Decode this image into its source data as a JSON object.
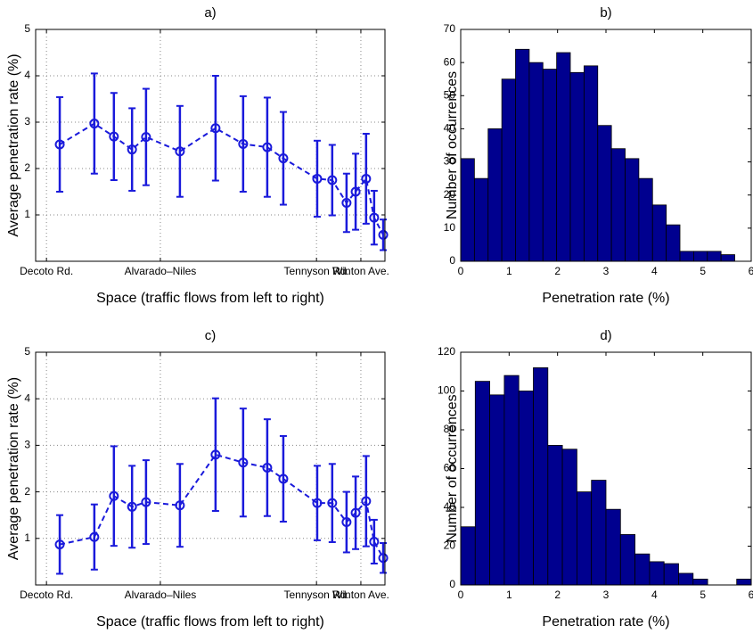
{
  "chart_data": [
    {
      "type": "errorbar",
      "title": "a)",
      "xlabel": "Space (traffic flows from left to right)",
      "ylabel": "Average penetration rate (%)",
      "x": [
        6.9,
        16.8,
        22.4,
        27.6,
        31.6,
        41.3,
        51.5,
        59.4,
        66.3,
        70.9,
        80.6,
        84.9,
        89.0,
        91.6,
        94.6,
        96.9,
        99.5
      ],
      "values": [
        2.52,
        2.97,
        2.69,
        2.41,
        2.68,
        2.37,
        2.87,
        2.53,
        2.46,
        2.22,
        1.78,
        1.75,
        1.26,
        1.5,
        1.78,
        0.94,
        0.57
      ],
      "errors": [
        1.02,
        1.08,
        0.94,
        0.89,
        1.04,
        0.98,
        1.13,
        1.03,
        1.07,
        1.0,
        0.82,
        0.76,
        0.63,
        0.82,
        0.97,
        0.58,
        0.33
      ],
      "color": "#1a1adb",
      "xlim": [
        0,
        100
      ],
      "xticks": [
        {
          "value": 3.1,
          "label": "Decoto Rd."
        },
        {
          "value": 35.7,
          "label": "Alvarado–Niles"
        },
        {
          "value": 80.4,
          "label": "Tennyson Rd."
        },
        {
          "value": 93.1,
          "label": "Winton Ave."
        }
      ],
      "ylim": [
        0,
        5
      ],
      "yticks": [
        1,
        2,
        3,
        4,
        5
      ],
      "grid": true
    },
    {
      "type": "histogram",
      "title": "b)",
      "xlabel": "Penetration rate (%)",
      "ylabel": "Number of occurrences",
      "bins": [
        0,
        0.283,
        0.566,
        0.849,
        1.132,
        1.415,
        1.698,
        1.981,
        2.264,
        2.547,
        2.83,
        3.113,
        3.396,
        3.679,
        3.962,
        4.245,
        4.528,
        4.811,
        5.094,
        5.377,
        5.66
      ],
      "values": [
        31,
        25,
        40,
        55,
        64,
        60,
        58,
        63,
        57,
        59,
        41,
        34,
        31,
        25,
        17,
        11,
        3,
        3,
        3,
        2
      ],
      "color": "#00008f",
      "xlim": [
        0,
        6
      ],
      "xticks": [
        0,
        1,
        2,
        3,
        4,
        5,
        6
      ],
      "ylim": [
        0,
        70
      ],
      "yticks": [
        0,
        10,
        20,
        30,
        40,
        50,
        60,
        70
      ],
      "grid": false
    },
    {
      "type": "errorbar",
      "title": "c)",
      "xlabel": "Space (traffic flows from left to right)",
      "ylabel": "Average penetration rate (%)",
      "x": [
        6.9,
        16.8,
        22.4,
        27.6,
        31.6,
        41.3,
        51.5,
        59.4,
        66.3,
        70.9,
        80.6,
        84.9,
        89.0,
        91.6,
        94.6,
        96.9,
        99.5
      ],
      "values": [
        0.87,
        1.03,
        1.91,
        1.68,
        1.78,
        1.71,
        2.8,
        2.63,
        2.52,
        2.28,
        1.76,
        1.76,
        1.35,
        1.55,
        1.8,
        0.93,
        0.58
      ],
      "errors": [
        0.63,
        0.7,
        1.07,
        0.88,
        0.9,
        0.89,
        1.21,
        1.16,
        1.04,
        0.92,
        0.8,
        0.84,
        0.65,
        0.78,
        0.97,
        0.47,
        0.32
      ],
      "color": "#1a1adb",
      "xlim": [
        0,
        100
      ],
      "xticks": [
        {
          "value": 3.1,
          "label": "Decoto Rd."
        },
        {
          "value": 35.7,
          "label": "Alvarado–Niles"
        },
        {
          "value": 80.4,
          "label": "Tennyson Rd."
        },
        {
          "value": 93.1,
          "label": "Winton Ave."
        }
      ],
      "ylim": [
        0,
        5
      ],
      "yticks": [
        1,
        2,
        3,
        4,
        5
      ],
      "grid": true
    },
    {
      "type": "histogram",
      "title": "d)",
      "xlabel": "Penetration rate (%)",
      "ylabel": "Number of occurrences",
      "bins": [
        0,
        0.3,
        0.6,
        0.9,
        1.2,
        1.5,
        1.8,
        2.1,
        2.4,
        2.7,
        3.0,
        3.3,
        3.6,
        3.9,
        4.2,
        4.5,
        4.8,
        5.1,
        5.4,
        5.7,
        6.0
      ],
      "values": [
        30,
        105,
        98,
        108,
        100,
        112,
        72,
        70,
        48,
        54,
        39,
        26,
        16,
        12,
        11,
        6,
        3,
        0,
        0,
        3
      ],
      "color": "#00008f",
      "xlim": [
        0,
        6
      ],
      "xticks": [
        0,
        1,
        2,
        3,
        4,
        5,
        6
      ],
      "ylim": [
        0,
        120
      ],
      "yticks": [
        0,
        20,
        40,
        60,
        80,
        100,
        120
      ],
      "grid": false
    }
  ]
}
